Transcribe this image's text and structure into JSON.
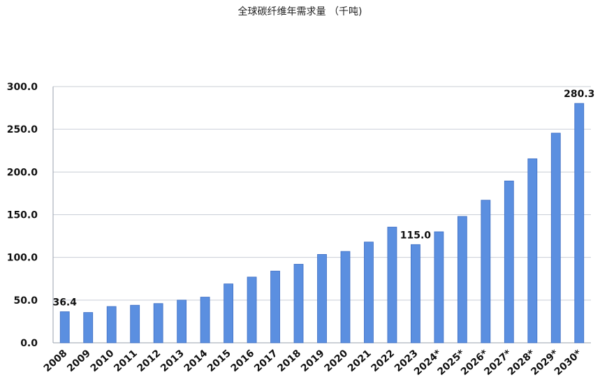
{
  "chart_data": {
    "type": "bar",
    "title": "全球碳纤维年需求量 （千吨)",
    "xlabel": "",
    "ylabel": "",
    "categories": [
      "2008",
      "2009",
      "2010",
      "2011",
      "2012",
      "2013",
      "2014",
      "2015",
      "2016",
      "2017",
      "2018",
      "2019",
      "2020",
      "2021",
      "2022",
      "2023",
      "2024*",
      "2025*",
      "2026*",
      "2027*",
      "2028*",
      "2029*",
      "2030*"
    ],
    "values": [
      36.4,
      35.5,
      42.5,
      44,
      46,
      50,
      53.5,
      69,
      77,
      84,
      92,
      103.5,
      107,
      118,
      135.5,
      115.0,
      130,
      148,
      167,
      189.5,
      215.5,
      245.5,
      280.3
    ],
    "data_labels": [
      {
        "index": 0,
        "text": "36.4"
      },
      {
        "index": 15,
        "text": "115.0"
      },
      {
        "index": 22,
        "text": "280.3"
      }
    ],
    "ylim": [
      0,
      300
    ],
    "yticks": [
      "0.0",
      "50.0",
      "100.0",
      "150.0",
      "200.0",
      "250.0",
      "300.0"
    ],
    "ytick_values": [
      0,
      50,
      100,
      150,
      200,
      250,
      300
    ],
    "grid": true,
    "legend": "none",
    "colors": {
      "bar": "#5b8fe0",
      "bar_edge": "#3f6fc4",
      "grid": "#c9ced6",
      "axis": "#9aa2ad"
    }
  }
}
